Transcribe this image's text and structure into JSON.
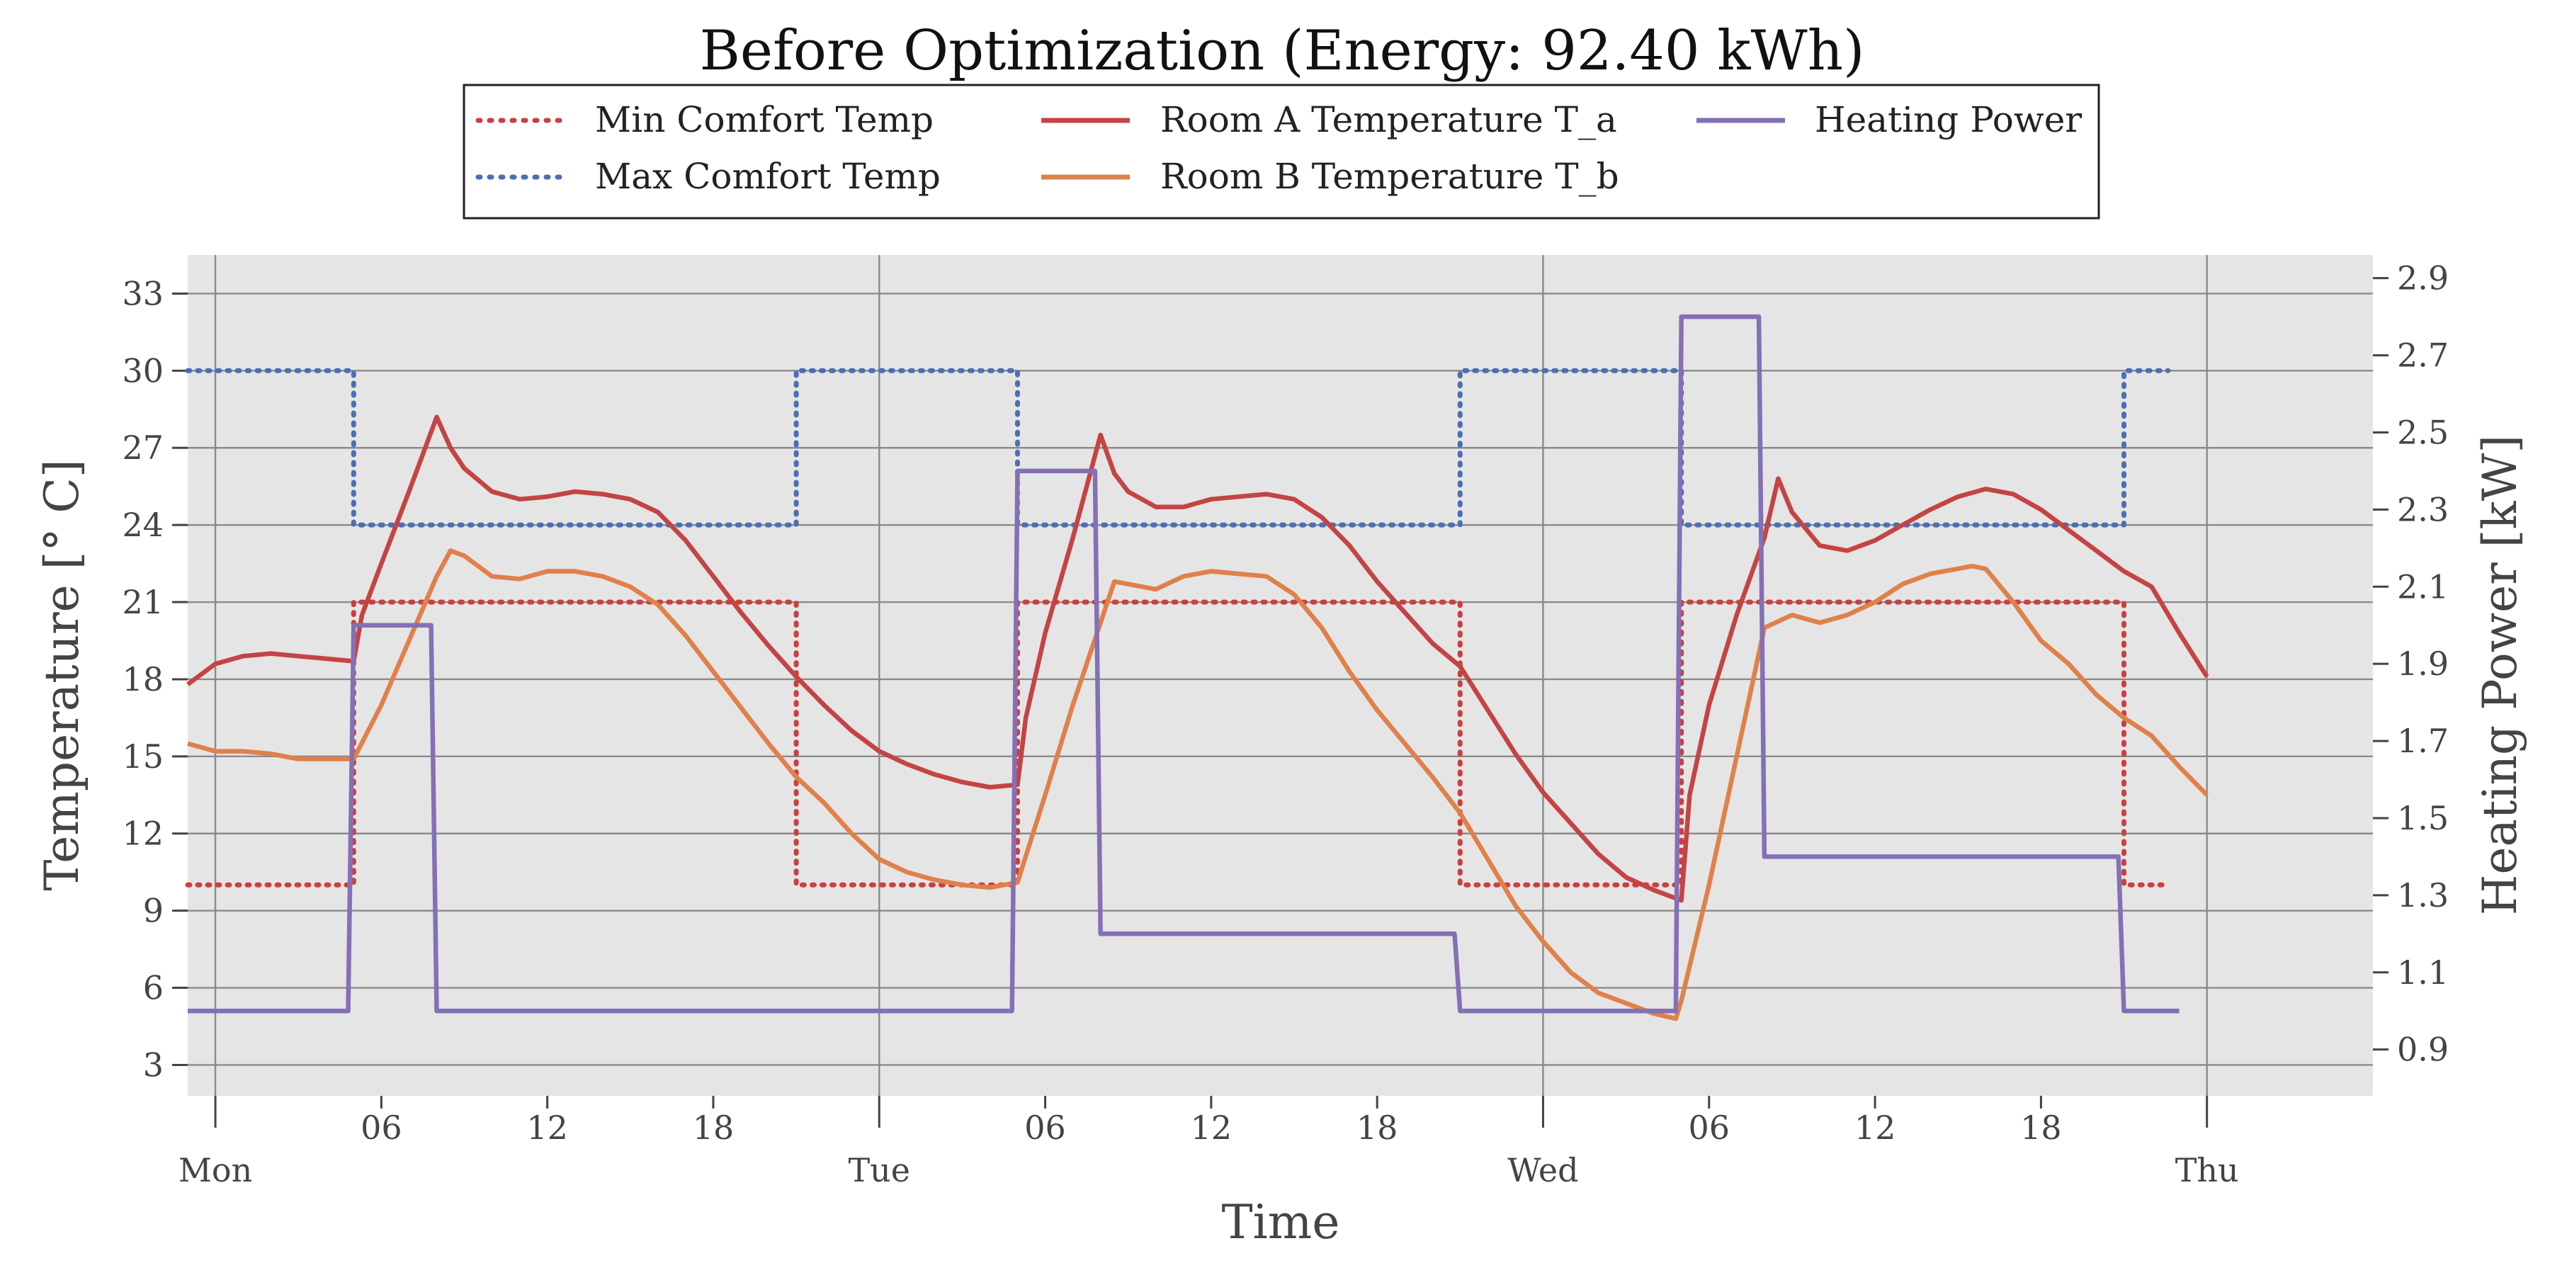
{
  "chart_data": {
    "type": "line",
    "title": "Before Optimization (Energy: 92.40 kWh)",
    "xlabel": "Time",
    "ylabel_left": "Temperature [° C]",
    "ylabel_right": "Heating Power [kW]",
    "x_unit": "hours since Mon 00:00",
    "xlim": [
      -1,
      78
    ],
    "ylim_left": [
      1.8,
      34.5
    ],
    "ylim_right": [
      0.78,
      2.96
    ],
    "y_ticks_left": [
      3,
      6,
      9,
      12,
      15,
      18,
      21,
      24,
      27,
      30,
      33
    ],
    "y_ticks_right": [
      0.9,
      1.1,
      1.3,
      1.5,
      1.7,
      1.9,
      2.1,
      2.3,
      2.5,
      2.7,
      2.9
    ],
    "x_major_ticks": [
      {
        "t": 0,
        "label": "Mon"
      },
      {
        "t": 24,
        "label": "Tue"
      },
      {
        "t": 48,
        "label": "Wed"
      },
      {
        "t": 72,
        "label": "Thu"
      }
    ],
    "x_minor_ticks": [
      {
        "t": 6,
        "label": "06"
      },
      {
        "t": 12,
        "label": "12"
      },
      {
        "t": 18,
        "label": "18"
      },
      {
        "t": 30,
        "label": "06"
      },
      {
        "t": 36,
        "label": "12"
      },
      {
        "t": 42,
        "label": "18"
      },
      {
        "t": 54,
        "label": "06"
      },
      {
        "t": 60,
        "label": "12"
      },
      {
        "t": 66,
        "label": "18"
      }
    ],
    "grid": true,
    "legend_position": "top-center",
    "series": [
      {
        "name": "Min Comfort Temp",
        "axis": "left",
        "style": "dotted",
        "color": "#cc3f3f",
        "points": [
          [
            -1,
            10
          ],
          [
            5,
            10
          ],
          [
            5,
            21
          ],
          [
            21,
            21
          ],
          [
            21,
            10
          ],
          [
            29,
            10
          ],
          [
            29,
            21
          ],
          [
            45,
            21
          ],
          [
            45,
            10
          ],
          [
            53,
            10
          ],
          [
            53,
            21
          ],
          [
            69,
            21
          ],
          [
            69,
            10
          ],
          [
            70.6,
            10
          ]
        ]
      },
      {
        "name": "Max Comfort Temp",
        "axis": "left",
        "style": "dotted",
        "color": "#4a6fb3",
        "points": [
          [
            -1,
            30
          ],
          [
            5,
            30
          ],
          [
            5,
            24
          ],
          [
            21,
            24
          ],
          [
            21,
            30
          ],
          [
            29,
            30
          ],
          [
            29,
            24
          ],
          [
            45,
            24
          ],
          [
            45,
            30
          ],
          [
            53,
            30
          ],
          [
            53,
            24
          ],
          [
            69,
            24
          ],
          [
            69,
            30
          ],
          [
            70.6,
            30
          ]
        ]
      },
      {
        "name": "Room A Temperature T_a",
        "axis": "left",
        "style": "solid",
        "color": "#c44444",
        "points": [
          [
            -1,
            17.8
          ],
          [
            0,
            18.6
          ],
          [
            1,
            18.9
          ],
          [
            2,
            19.0
          ],
          [
            3,
            18.9
          ],
          [
            4,
            18.8
          ],
          [
            5,
            18.7
          ],
          [
            5.3,
            20.5
          ],
          [
            6,
            22.5
          ],
          [
            7,
            25.3
          ],
          [
            8,
            28.2
          ],
          [
            8.5,
            27
          ],
          [
            9,
            26.2
          ],
          [
            10,
            25.3
          ],
          [
            11,
            25.0
          ],
          [
            12,
            25.1
          ],
          [
            13,
            25.3
          ],
          [
            14,
            25.2
          ],
          [
            15,
            25.0
          ],
          [
            16,
            24.5
          ],
          [
            17,
            23.4
          ],
          [
            18,
            22.0
          ],
          [
            19,
            20.6
          ],
          [
            20,
            19.3
          ],
          [
            21,
            18.1
          ],
          [
            22,
            17.0
          ],
          [
            23,
            16.0
          ],
          [
            24,
            15.2
          ],
          [
            25,
            14.7
          ],
          [
            26,
            14.3
          ],
          [
            27,
            14.0
          ],
          [
            28,
            13.8
          ],
          [
            29,
            13.9
          ],
          [
            29.3,
            16.5
          ],
          [
            30,
            19.8
          ],
          [
            31,
            23.5
          ],
          [
            32,
            27.5
          ],
          [
            32.5,
            26.0
          ],
          [
            33,
            25.3
          ],
          [
            34,
            24.7
          ],
          [
            35,
            24.7
          ],
          [
            36,
            25.0
          ],
          [
            37,
            25.1
          ],
          [
            38,
            25.2
          ],
          [
            39,
            25.0
          ],
          [
            40,
            24.3
          ],
          [
            41,
            23.2
          ],
          [
            42,
            21.8
          ],
          [
            43,
            20.6
          ],
          [
            44,
            19.4
          ],
          [
            45,
            18.5
          ],
          [
            46,
            16.8
          ],
          [
            47,
            15.1
          ],
          [
            48,
            13.6
          ],
          [
            49,
            12.4
          ],
          [
            50,
            11.2
          ],
          [
            51,
            10.3
          ],
          [
            52,
            9.8
          ],
          [
            53,
            9.4
          ],
          [
            53.3,
            13.5
          ],
          [
            54,
            17.0
          ],
          [
            55,
            20.5
          ],
          [
            56,
            23.5
          ],
          [
            56.5,
            25.8
          ],
          [
            57,
            24.5
          ],
          [
            58,
            23.2
          ],
          [
            59,
            23.0
          ],
          [
            60,
            23.4
          ],
          [
            61,
            24.0
          ],
          [
            62,
            24.6
          ],
          [
            63,
            25.1
          ],
          [
            64,
            25.4
          ],
          [
            65,
            25.2
          ],
          [
            66,
            24.6
          ],
          [
            67,
            23.8
          ],
          [
            68,
            23.0
          ],
          [
            69,
            22.2
          ],
          [
            70,
            21.6
          ],
          [
            71,
            19.8
          ],
          [
            72,
            18.1
          ]
        ]
      },
      {
        "name": "Room B Temperature T_b",
        "axis": "left",
        "style": "solid",
        "color": "#e0804a",
        "points": [
          [
            -1,
            15.5
          ],
          [
            0,
            15.2
          ],
          [
            1,
            15.2
          ],
          [
            2,
            15.1
          ],
          [
            3,
            14.9
          ],
          [
            4,
            14.9
          ],
          [
            5,
            14.9
          ],
          [
            6,
            17.0
          ],
          [
            7,
            19.5
          ],
          [
            8,
            22.0
          ],
          [
            8.5,
            23.0
          ],
          [
            9,
            22.8
          ],
          [
            10,
            22.0
          ],
          [
            11,
            21.9
          ],
          [
            12,
            22.2
          ],
          [
            13,
            22.2
          ],
          [
            14,
            22.0
          ],
          [
            15,
            21.6
          ],
          [
            16,
            20.9
          ],
          [
            17,
            19.7
          ],
          [
            18,
            18.3
          ],
          [
            19,
            16.9
          ],
          [
            20,
            15.5
          ],
          [
            21,
            14.2
          ],
          [
            22,
            13.2
          ],
          [
            23,
            12.0
          ],
          [
            24,
            11.0
          ],
          [
            25,
            10.5
          ],
          [
            26,
            10.2
          ],
          [
            27,
            10.0
          ],
          [
            28,
            9.9
          ],
          [
            29,
            10.1
          ],
          [
            30,
            13.5
          ],
          [
            31,
            17.0
          ],
          [
            32,
            20.2
          ],
          [
            32.5,
            21.8
          ],
          [
            33,
            21.7
          ],
          [
            34,
            21.5
          ],
          [
            35,
            22.0
          ],
          [
            36,
            22.2
          ],
          [
            37,
            22.1
          ],
          [
            38,
            22.0
          ],
          [
            39,
            21.3
          ],
          [
            40,
            20.0
          ],
          [
            41,
            18.3
          ],
          [
            42,
            16.8
          ],
          [
            43,
            15.5
          ],
          [
            44,
            14.2
          ],
          [
            45,
            12.8
          ],
          [
            46,
            11.0
          ],
          [
            47,
            9.2
          ],
          [
            48,
            7.8
          ],
          [
            49,
            6.6
          ],
          [
            50,
            5.8
          ],
          [
            51,
            5.4
          ],
          [
            52,
            5.0
          ],
          [
            52.8,
            4.8
          ],
          [
            53,
            5.5
          ],
          [
            54,
            10.0
          ],
          [
            55,
            15.0
          ],
          [
            56,
            20.0
          ],
          [
            57,
            20.5
          ],
          [
            58,
            20.2
          ],
          [
            59,
            20.5
          ],
          [
            60,
            21.0
          ],
          [
            61,
            21.7
          ],
          [
            62,
            22.1
          ],
          [
            63,
            22.3
          ],
          [
            63.5,
            22.4
          ],
          [
            64,
            22.3
          ],
          [
            65,
            21.0
          ],
          [
            66,
            19.5
          ],
          [
            67,
            18.6
          ],
          [
            68,
            17.4
          ],
          [
            69,
            16.5
          ],
          [
            70,
            15.8
          ],
          [
            71,
            14.6
          ],
          [
            72,
            13.5
          ]
        ]
      },
      {
        "name": "Heating Power",
        "axis": "right",
        "style": "solid",
        "color": "#8470b5",
        "points": [
          [
            -1,
            1.0
          ],
          [
            4.8,
            1.0
          ],
          [
            5,
            2.0
          ],
          [
            7.8,
            2.0
          ],
          [
            8,
            1.0
          ],
          [
            28.8,
            1.0
          ],
          [
            29,
            2.4
          ],
          [
            31.8,
            2.4
          ],
          [
            32,
            1.2
          ],
          [
            44.8,
            1.2
          ],
          [
            45,
            1.0
          ],
          [
            52.8,
            1.0
          ],
          [
            53,
            2.8
          ],
          [
            55.8,
            2.8
          ],
          [
            56,
            1.4
          ],
          [
            68.8,
            1.4
          ],
          [
            69,
            1.0
          ],
          [
            71,
            1.0
          ]
        ]
      }
    ]
  }
}
